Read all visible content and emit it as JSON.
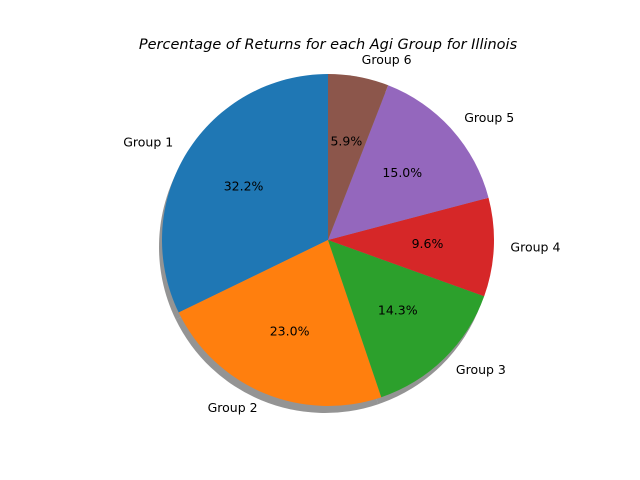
{
  "chart_data": {
    "type": "pie",
    "title": "Percentage of Returns for each Agi Group for Illinois",
    "labels": [
      "Group 1",
      "Group 2",
      "Group 3",
      "Group 4",
      "Group 5",
      "Group 6"
    ],
    "values": [
      32.2,
      23.0,
      14.3,
      9.6,
      15.0,
      5.9
    ],
    "value_labels": [
      "32.2%",
      "23.0%",
      "14.3%",
      "9.6%",
      "15.0%",
      "5.9%"
    ],
    "colors": [
      "#1f77b4",
      "#ff7f0e",
      "#2ca02c",
      "#d62728",
      "#9467bd",
      "#8c564b"
    ],
    "start_angle_deg": 90,
    "direction": "counterclockwise",
    "shadow": true,
    "legend": "none"
  }
}
